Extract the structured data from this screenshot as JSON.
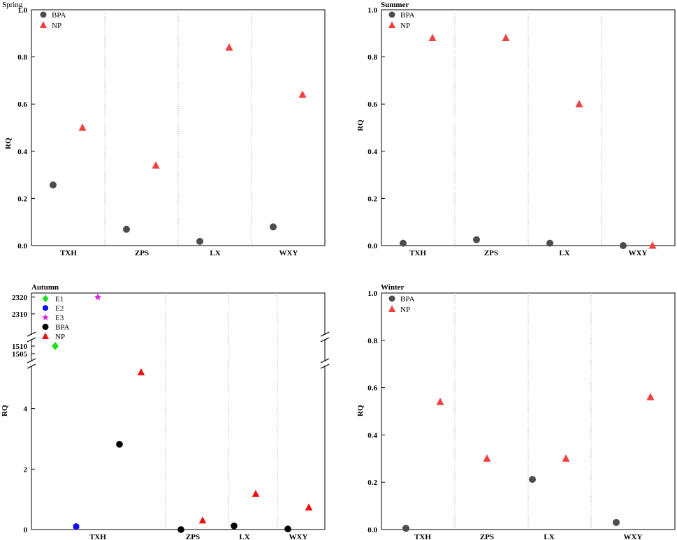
{
  "chart_data": [
    {
      "type": "scatter",
      "title": "Spring",
      "ylabel": "RQ",
      "ylim": [
        0,
        1.0
      ],
      "yticks": [
        "0.0",
        "0.2",
        "0.4",
        "0.6",
        "0.8",
        "1.0"
      ],
      "categories": [
        "TXH",
        "ZPS",
        "LX",
        "WXY"
      ],
      "grid": "vertical dotted separators between sites",
      "legend": "top-left",
      "series": [
        {
          "name": "BPA",
          "marker": "circle",
          "color": "#4d4d4d",
          "values": [
            0.257,
            0.069,
            0.018,
            0.079
          ]
        },
        {
          "name": "NP",
          "marker": "triangle",
          "color": "#f04040",
          "values": [
            0.5,
            0.34,
            0.84,
            0.64
          ]
        }
      ]
    },
    {
      "type": "scatter",
      "title": "Summer",
      "ylabel": "RQ",
      "ylim": [
        0,
        1.0
      ],
      "yticks": [
        "0.0",
        "0.2",
        "0.4",
        "0.6",
        "0.8",
        "1.0"
      ],
      "categories": [
        "TXH",
        "ZPS",
        "LX",
        "WXY"
      ],
      "grid": "vertical dotted separators between sites",
      "legend": "top-left",
      "series": [
        {
          "name": "BPA",
          "marker": "circle",
          "color": "#4d4d4d",
          "values": [
            0.01,
            0.025,
            0.01,
            0.0
          ]
        },
        {
          "name": "NP",
          "marker": "triangle",
          "color": "#f04040",
          "values": [
            0.88,
            0.88,
            0.6,
            0.0
          ]
        }
      ]
    },
    {
      "type": "scatter",
      "title": "Autumn",
      "ylabel": "RQ",
      "axis_break": "two breaks: 0–5, 1500–1515, 2300–2322",
      "yticks_low": [
        "0",
        "2",
        "4"
      ],
      "yticks_mid": [
        "1505",
        "1510"
      ],
      "yticks_high": [
        "2310",
        "2320"
      ],
      "categories": [
        "TXH",
        "ZPS",
        "LX",
        "WXY"
      ],
      "grid": "vertical dotted separators between sites",
      "legend": "top-left",
      "series": [
        {
          "name": "E1",
          "marker": "diamond",
          "color": "#22dd22",
          "points": [
            {
              "category": "TXH",
              "value": 1510
            }
          ]
        },
        {
          "name": "E2",
          "marker": "hexagon",
          "color": "#1010ee",
          "points": [
            {
              "category": "TXH",
              "value": 0.1
            }
          ]
        },
        {
          "name": "E3",
          "marker": "star",
          "color": "#dd22dd",
          "points": [
            {
              "category": "TXH",
              "value": 2320
            }
          ]
        },
        {
          "name": "BPA",
          "marker": "circle",
          "color": "#000000",
          "values": [
            2.82,
            0.0,
            0.12,
            0.02
          ]
        },
        {
          "name": "NP",
          "marker": "triangle",
          "color": "#ee1010",
          "values": [
            5.2,
            0.3,
            1.18,
            0.73
          ]
        }
      ]
    },
    {
      "type": "scatter",
      "title": "Winter",
      "ylabel": "RQ",
      "ylim": [
        0,
        1.0
      ],
      "yticks": [
        "0.0",
        "0.2",
        "0.4",
        "0.6",
        "0.8",
        "1.0"
      ],
      "categories": [
        "TXH",
        "ZPS",
        "LX",
        "WXY"
      ],
      "grid": "vertical dotted separators between sites",
      "legend": "top-left",
      "series": [
        {
          "name": "BPA",
          "marker": "circle",
          "color": "#4d4d4d",
          "values": [
            0.005,
            null,
            0.212,
            0.03
          ]
        },
        {
          "name": "NP",
          "marker": "triangle",
          "color": "#f04040",
          "values": [
            0.54,
            0.3,
            0.3,
            0.56
          ]
        }
      ]
    }
  ]
}
